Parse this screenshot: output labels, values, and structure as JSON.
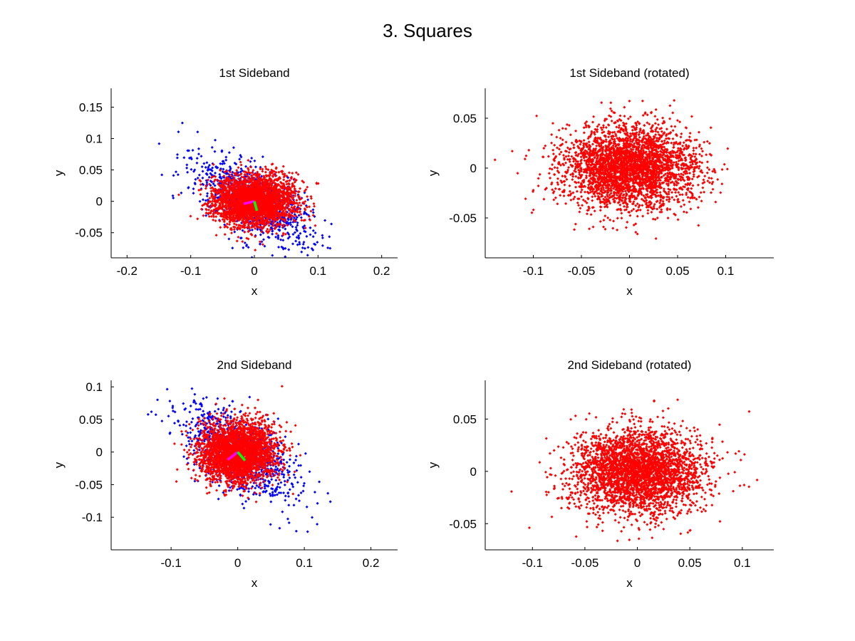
{
  "figure": {
    "title": "3. Squares"
  },
  "colors": {
    "original": "#0000ff",
    "rotated": "#ff0000",
    "axis_a": "#ff00ff",
    "axis_b": "#00ff00",
    "axes": "#000000"
  },
  "chart_data": [
    {
      "type": "scatter",
      "title": "1st Sideband",
      "xlabel": "x",
      "ylabel": "y",
      "xlim": [
        -0.225,
        0.225
      ],
      "ylim": [
        -0.09,
        0.18
      ],
      "xticks": [
        -0.2,
        -0.1,
        0,
        0.1,
        0.2
      ],
      "yticks": [
        -0.05,
        0,
        0.05,
        0.1,
        0.15
      ],
      "series": [
        {
          "color": "#0000ff",
          "count": 900,
          "cx": 0.0,
          "cy": 0.0,
          "sx": 0.038,
          "sy": 0.038,
          "angle_deg": -35,
          "sa": 0.055,
          "sb": 0.024
        },
        {
          "color": "#ff0000",
          "count": 3000,
          "cx": 0.0,
          "cy": 0.0,
          "sx": 0.032,
          "sy": 0.02,
          "angle_deg": 0
        }
      ],
      "principal_axes": [
        {
          "color": "#ff00ff",
          "x": [
            0,
            -0.017
          ],
          "y": [
            0,
            -0.004
          ]
        },
        {
          "color": "#00ff00",
          "x": [
            0,
            0.004
          ],
          "y": [
            0,
            -0.015
          ]
        }
      ]
    },
    {
      "type": "scatter",
      "title": "1st Sideband (rotated)",
      "xlabel": "x",
      "ylabel": "y",
      "xlim": [
        -0.15,
        0.15
      ],
      "ylim": [
        -0.09,
        0.08
      ],
      "xticks": [
        -0.1,
        -0.05,
        0,
        0.05,
        0.1
      ],
      "yticks": [
        -0.05,
        0,
        0.05
      ],
      "series": [
        {
          "color": "#ff0000",
          "count": 3200,
          "cx": 0.0,
          "cy": 0.0,
          "sx": 0.035,
          "sy": 0.021,
          "angle_deg": 0
        }
      ]
    },
    {
      "type": "scatter",
      "title": "2nd Sideband",
      "xlabel": "x",
      "ylabel": "y",
      "xlim": [
        -0.19,
        0.24
      ],
      "ylim": [
        -0.15,
        0.11
      ],
      "xticks": [
        -0.1,
        0,
        0.1,
        0.2
      ],
      "yticks": [
        -0.1,
        -0.05,
        0,
        0.05,
        0.1
      ],
      "series": [
        {
          "color": "#0000ff",
          "count": 900,
          "cx": 0.0,
          "cy": 0.0,
          "sx": 0.04,
          "sy": 0.04,
          "angle_deg": -40,
          "sa": 0.055,
          "sb": 0.026
        },
        {
          "color": "#ff0000",
          "count": 3000,
          "cx": 0.0,
          "cy": 0.0,
          "sx": 0.028,
          "sy": 0.023,
          "angle_deg": 0
        }
      ],
      "principal_axes": [
        {
          "color": "#ff00ff",
          "x": [
            0,
            -0.015
          ],
          "y": [
            0,
            -0.012
          ]
        },
        {
          "color": "#00ff00",
          "x": [
            0,
            0.011
          ],
          "y": [
            0,
            -0.013
          ]
        }
      ]
    },
    {
      "type": "scatter",
      "title": "2nd Sideband (rotated)",
      "xlabel": "x",
      "ylabel": "y",
      "xlim": [
        -0.145,
        0.13
      ],
      "ylim": [
        -0.075,
        0.087
      ],
      "xticks": [
        -0.1,
        -0.05,
        0,
        0.05,
        0.1
      ],
      "yticks": [
        -0.05,
        0,
        0.05
      ],
      "series": [
        {
          "color": "#ff0000",
          "count": 3200,
          "cx": 0.0,
          "cy": 0.0,
          "sx": 0.032,
          "sy": 0.02,
          "angle_deg": 0
        }
      ]
    }
  ]
}
